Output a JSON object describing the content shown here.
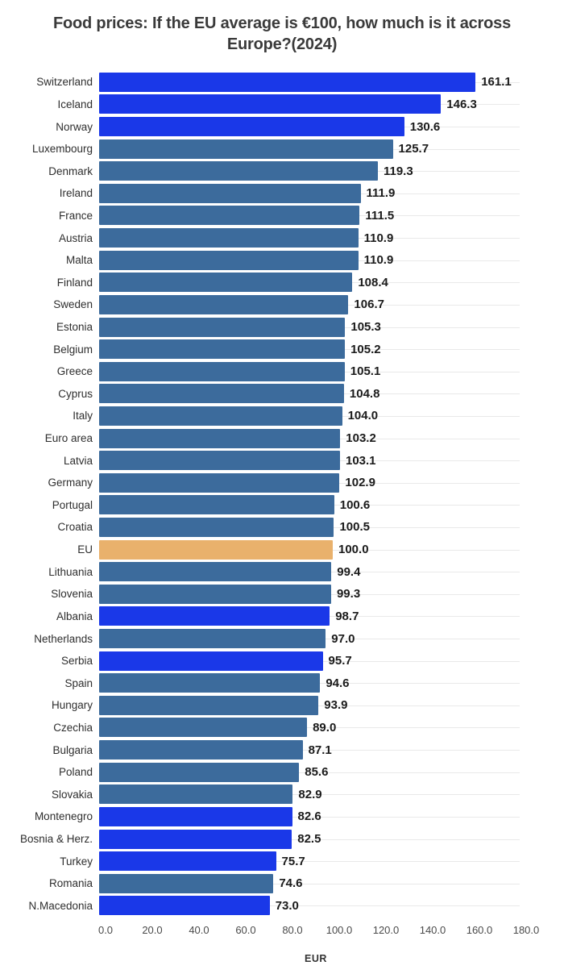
{
  "title": "Food prices: If the EU average is €100, how much is it across Europe?(2024)",
  "colors": {
    "default_bar": "#3c6b9c",
    "highlight_bar": "#1a38e8",
    "eu_bar": "#e9b16c",
    "gridline": "#e9e9e9",
    "title_text": "#3a3a3a",
    "value_text": "#1b1b1b"
  },
  "chart_data": {
    "type": "bar",
    "orientation": "horizontal",
    "title": "Food prices: If the EU average is €100, how much is it across Europe?(2024)",
    "xlabel": "EUR",
    "ylabel": "",
    "xlim": [
      0,
      180
    ],
    "xticks": [
      0,
      20,
      40,
      60,
      80,
      100,
      120,
      140,
      160,
      180
    ],
    "xtick_labels": [
      "0.0",
      "20.0",
      "40.0",
      "60.0",
      "80.0",
      "100.0",
      "120.0",
      "140.0",
      "160.0",
      "180.0"
    ],
    "grid": "horizontal-faint",
    "legend": "none",
    "categories": [
      "Switzerland",
      "Iceland",
      "Norway",
      "Luxembourg",
      "Denmark",
      "Ireland",
      "France",
      "Austria",
      "Malta",
      "Finland",
      "Sweden",
      "Estonia",
      "Belgium",
      "Greece",
      "Cyprus",
      "Italy",
      "Euro area",
      "Latvia",
      "Germany",
      "Portugal",
      "Croatia",
      "EU",
      "Lithuania",
      "Slovenia",
      "Albania",
      "Netherlands",
      "Serbia",
      "Spain",
      "Hungary",
      "Czechia",
      "Bulgaria",
      "Poland",
      "Slovakia",
      "Montenegro",
      "Bosnia & Herz.",
      "Turkey",
      "Romania",
      "N.Macedonia"
    ],
    "values": [
      161.1,
      146.3,
      130.6,
      125.7,
      119.3,
      111.9,
      111.5,
      110.9,
      110.9,
      108.4,
      106.7,
      105.3,
      105.2,
      105.1,
      104.8,
      104.0,
      103.2,
      103.1,
      102.9,
      100.6,
      100.5,
      100.0,
      99.4,
      99.3,
      98.7,
      97.0,
      95.7,
      94.6,
      93.9,
      89.0,
      87.1,
      85.6,
      82.9,
      82.6,
      82.5,
      75.7,
      74.6,
      73.0
    ],
    "rows": [
      {
        "label": "Switzerland",
        "value": 161.1,
        "color": "highlight_bar"
      },
      {
        "label": "Iceland",
        "value": 146.3,
        "color": "highlight_bar"
      },
      {
        "label": "Norway",
        "value": 130.6,
        "color": "highlight_bar"
      },
      {
        "label": "Luxembourg",
        "value": 125.7,
        "color": "default_bar"
      },
      {
        "label": "Denmark",
        "value": 119.3,
        "color": "default_bar"
      },
      {
        "label": "Ireland",
        "value": 111.9,
        "color": "default_bar"
      },
      {
        "label": "France",
        "value": 111.5,
        "color": "default_bar"
      },
      {
        "label": "Austria",
        "value": 110.9,
        "color": "default_bar"
      },
      {
        "label": "Malta",
        "value": 110.9,
        "color": "default_bar"
      },
      {
        "label": "Finland",
        "value": 108.4,
        "color": "default_bar"
      },
      {
        "label": "Sweden",
        "value": 106.7,
        "color": "default_bar"
      },
      {
        "label": "Estonia",
        "value": 105.3,
        "color": "default_bar"
      },
      {
        "label": "Belgium",
        "value": 105.2,
        "color": "default_bar"
      },
      {
        "label": "Greece",
        "value": 105.1,
        "color": "default_bar"
      },
      {
        "label": "Cyprus",
        "value": 104.8,
        "color": "default_bar"
      },
      {
        "label": "Italy",
        "value": 104.0,
        "color": "default_bar"
      },
      {
        "label": "Euro area",
        "value": 103.2,
        "color": "default_bar"
      },
      {
        "label": "Latvia",
        "value": 103.1,
        "color": "default_bar"
      },
      {
        "label": "Germany",
        "value": 102.9,
        "color": "default_bar"
      },
      {
        "label": "Portugal",
        "value": 100.6,
        "color": "default_bar"
      },
      {
        "label": "Croatia",
        "value": 100.5,
        "color": "default_bar"
      },
      {
        "label": "EU",
        "value": 100.0,
        "color": "eu_bar"
      },
      {
        "label": "Lithuania",
        "value": 99.4,
        "color": "default_bar"
      },
      {
        "label": "Slovenia",
        "value": 99.3,
        "color": "default_bar"
      },
      {
        "label": "Albania",
        "value": 98.7,
        "color": "highlight_bar"
      },
      {
        "label": "Netherlands",
        "value": 97.0,
        "color": "default_bar"
      },
      {
        "label": "Serbia",
        "value": 95.7,
        "color": "highlight_bar"
      },
      {
        "label": "Spain",
        "value": 94.6,
        "color": "default_bar"
      },
      {
        "label": "Hungary",
        "value": 93.9,
        "color": "default_bar"
      },
      {
        "label": "Czechia",
        "value": 89.0,
        "color": "default_bar"
      },
      {
        "label": "Bulgaria",
        "value": 87.1,
        "color": "default_bar"
      },
      {
        "label": "Poland",
        "value": 85.6,
        "color": "default_bar"
      },
      {
        "label": "Slovakia",
        "value": 82.9,
        "color": "default_bar"
      },
      {
        "label": "Montenegro",
        "value": 82.6,
        "color": "highlight_bar"
      },
      {
        "label": "Bosnia & Herz.",
        "value": 82.5,
        "color": "highlight_bar"
      },
      {
        "label": "Turkey",
        "value": 75.7,
        "color": "highlight_bar"
      },
      {
        "label": "Romania",
        "value": 74.6,
        "color": "default_bar"
      },
      {
        "label": "N.Macedonia",
        "value": 73.0,
        "color": "highlight_bar"
      }
    ]
  }
}
